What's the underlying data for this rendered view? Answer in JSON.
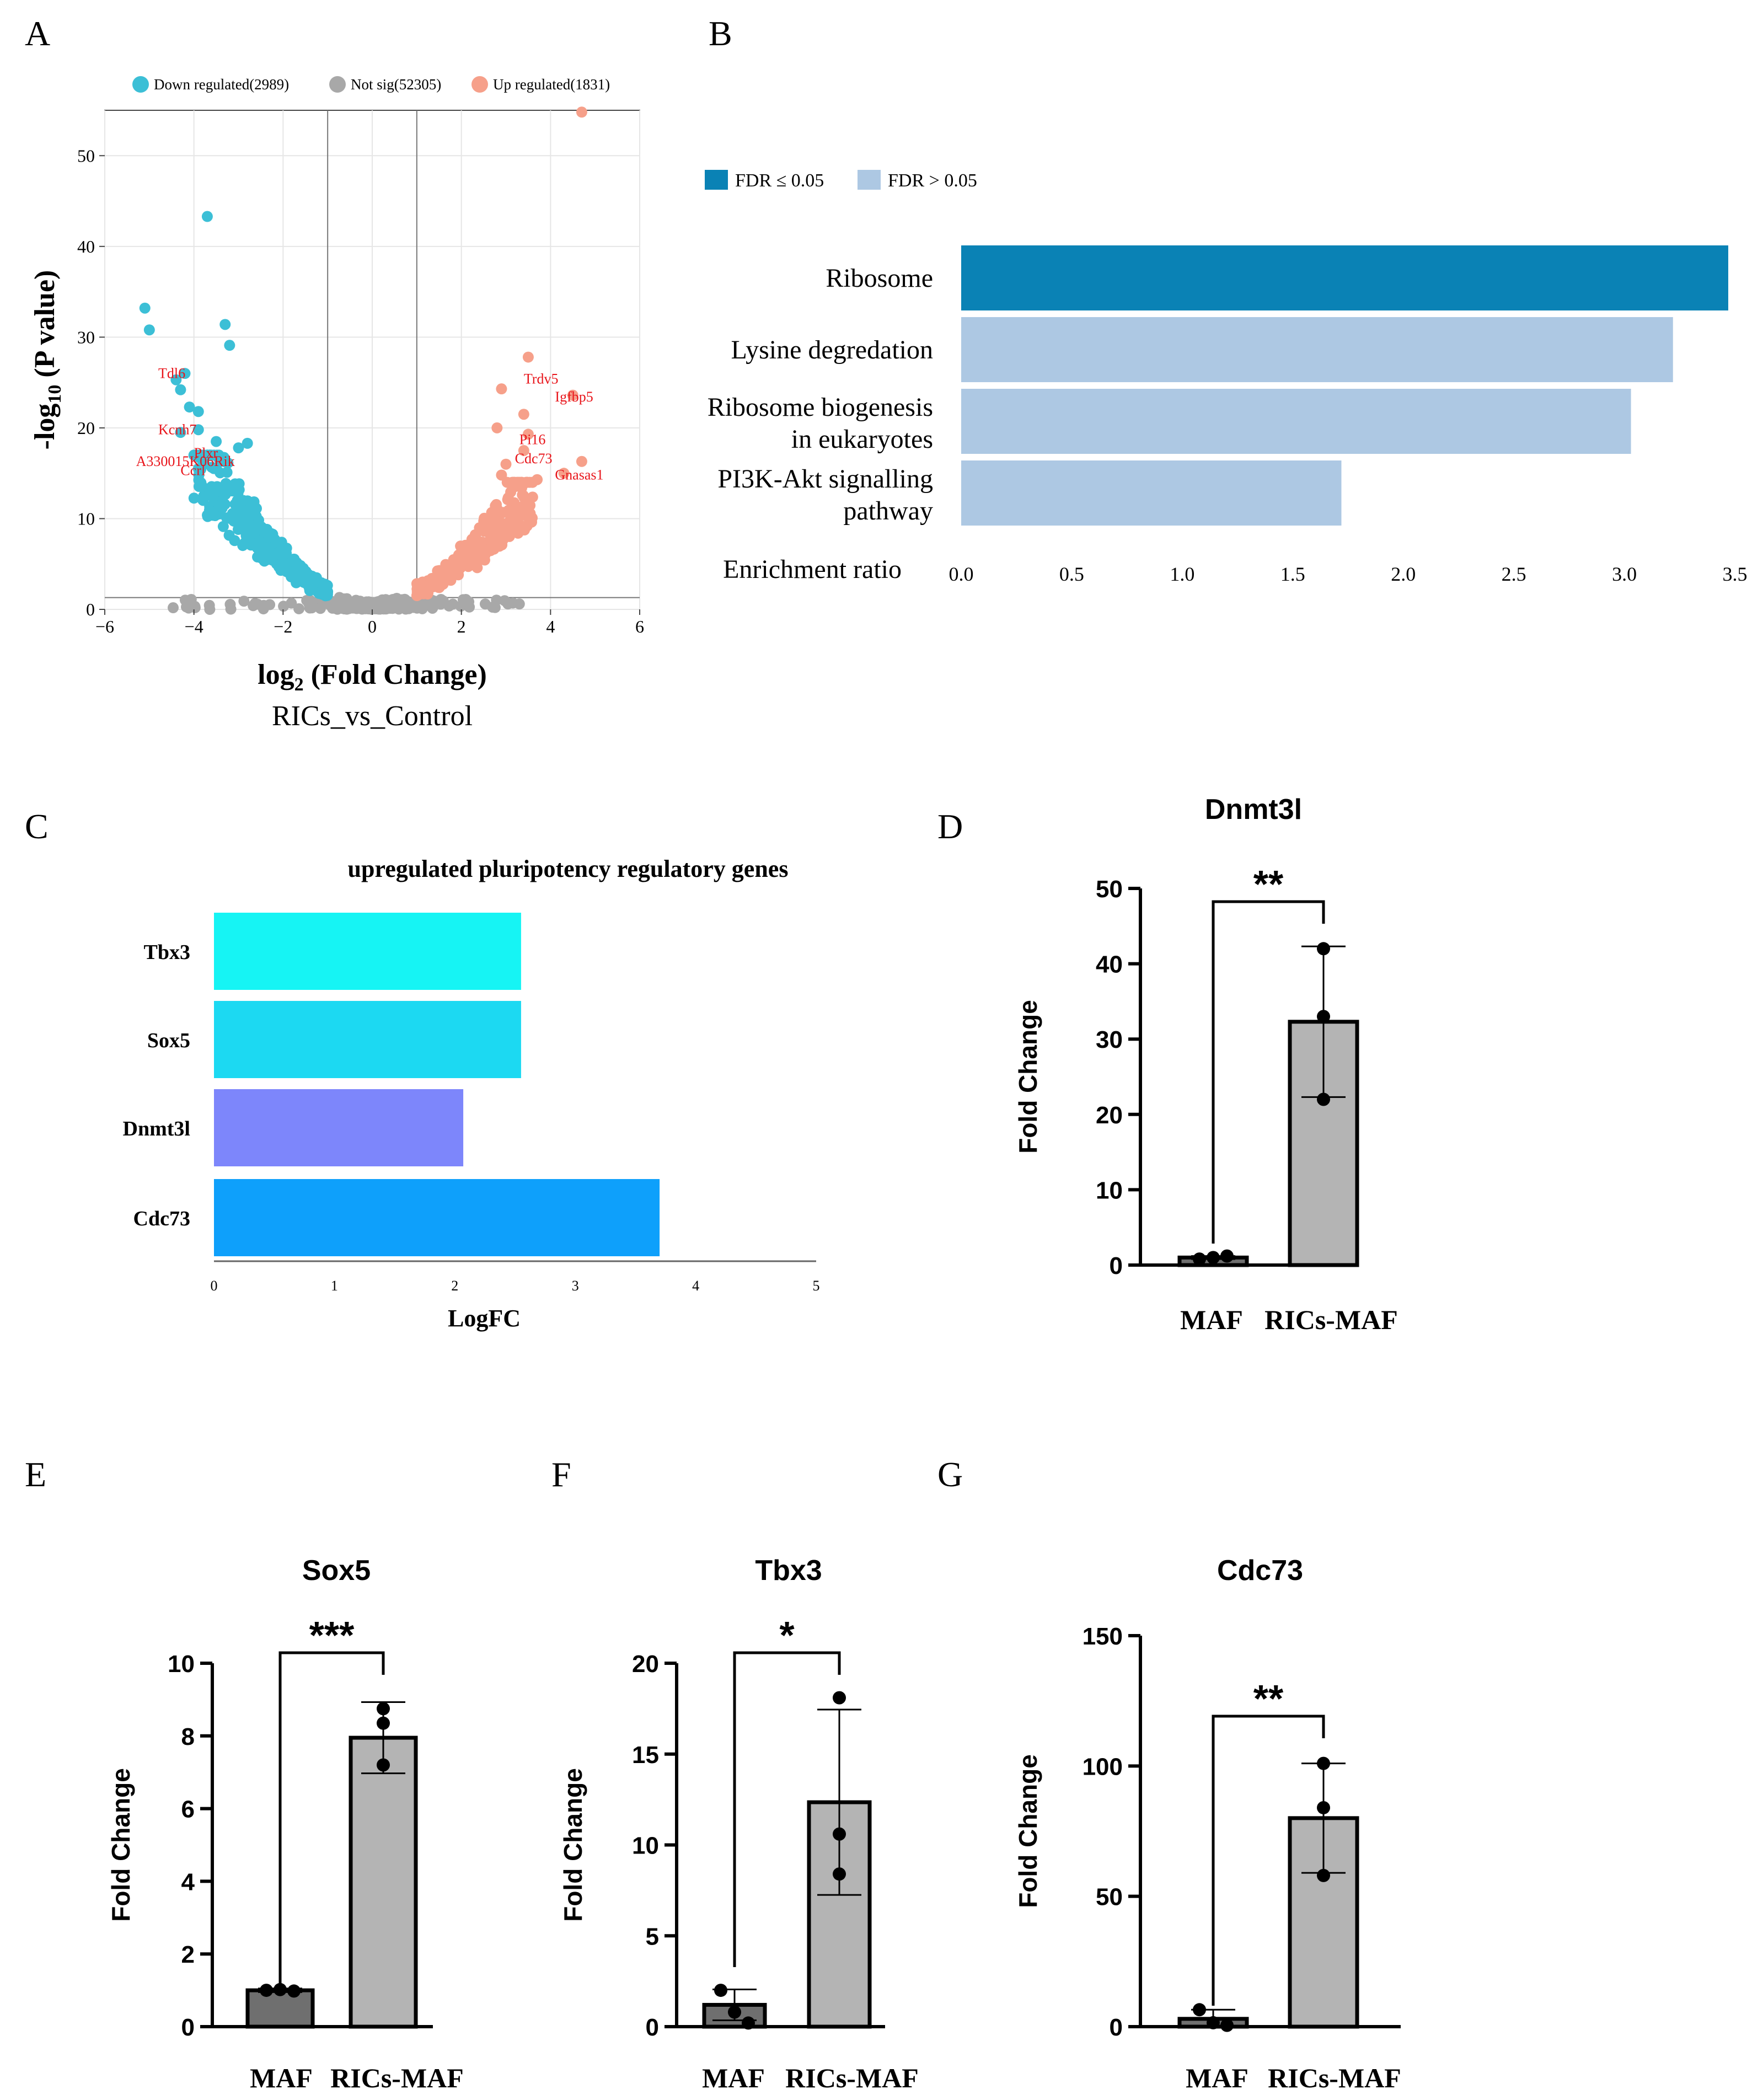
{
  "figure": {
    "panels": {
      "A": "A",
      "B": "B",
      "C": "C",
      "D": "D",
      "E": "E",
      "F": "F",
      "G": "G"
    }
  },
  "colors": {
    "down": "#3cbfd6",
    "notsig": "#a8a8a8",
    "up": "#f6a08a",
    "fdr_sig": "#0a82b5",
    "fdr_nonsig": "#adc8e3",
    "label_red": "#e8141a",
    "tbx3": "#16f4f4",
    "sox5": "#1cd9f2",
    "dnmt3l": "#7d86fb",
    "cdc73": "#0ea0fb",
    "bar_maf": "#6f6f6f",
    "bar_rics": "#b4b4b4"
  },
  "chart_data": [
    {
      "panel": "A",
      "type": "scatter",
      "title": "",
      "xlabel_main": "log",
      "xlabel_sub": "2",
      "xlabel_rest": " (Fold Change)",
      "subtitle": "RICs_vs_Control",
      "ylabel_main": "-log",
      "ylabel_sub": "10",
      "ylabel_rest": " (P value)",
      "xlim": [
        -6,
        6
      ],
      "ylim": [
        0,
        55
      ],
      "xticks": [
        "−6",
        "−4",
        "−2",
        "0",
        "2",
        "4",
        "6"
      ],
      "yticks": [
        "0",
        "10",
        "20",
        "30",
        "40",
        "50"
      ],
      "thresholds": {
        "log2fc": [
          -1,
          1
        ],
        "neglog10p": 1.3
      },
      "legend": [
        {
          "label": "Down regulated(2989)",
          "color_key": "down"
        },
        {
          "label": "Not sig(52305)",
          "color_key": "notsig"
        },
        {
          "label": "Up regulated(1831)",
          "color_key": "up"
        }
      ],
      "highlight_points": {
        "down": [
          [
            -3.7,
            43.3
          ],
          [
            -5.1,
            33.2
          ],
          [
            -5.0,
            30.8
          ],
          [
            -3.3,
            31.4
          ],
          [
            -3.2,
            29.1
          ],
          [
            -4.2,
            26.0
          ],
          [
            -4.4,
            25.3
          ],
          [
            -4.3,
            24.2
          ],
          [
            -4.1,
            22.3
          ],
          [
            -3.9,
            21.8
          ],
          [
            -4.3,
            19.5
          ],
          [
            -3.9,
            19.8
          ],
          [
            -3.5,
            18.5
          ],
          [
            -3.0,
            17.8
          ],
          [
            -2.8,
            18.3
          ],
          [
            -4.0,
            17.0
          ],
          [
            -3.9,
            15.5
          ],
          [
            -3.5,
            15.6
          ]
        ],
        "up": [
          [
            4.7,
            54.8
          ],
          [
            3.5,
            27.8
          ],
          [
            2.9,
            24.3
          ],
          [
            4.5,
            23.6
          ],
          [
            3.4,
            21.5
          ],
          [
            2.8,
            20.0
          ],
          [
            3.5,
            19.3
          ],
          [
            3.4,
            17.5
          ],
          [
            3.0,
            16.0
          ],
          [
            4.7,
            16.3
          ],
          [
            4.3,
            15.0
          ],
          [
            2.9,
            14.8
          ],
          [
            3.7,
            14.3
          ]
        ]
      },
      "gene_labels": [
        {
          "text": "Tdl6",
          "x": -4.8,
          "y": 25.5
        },
        {
          "text": "Kcnh7",
          "x": -4.8,
          "y": 19.3
        },
        {
          "text": "Plxr",
          "x": -4.0,
          "y": 16.7
        },
        {
          "text": "A330015K06Rik",
          "x": -5.3,
          "y": 15.8
        },
        {
          "text": "Ccrl",
          "x": -4.3,
          "y": 14.8
        },
        {
          "text": "Trdv5",
          "x": 3.4,
          "y": 24.9
        },
        {
          "text": "Igfbp5",
          "x": 4.1,
          "y": 22.9
        },
        {
          "text": "Pi16",
          "x": 3.3,
          "y": 18.2
        },
        {
          "text": "Cdc73",
          "x": 3.2,
          "y": 16.1
        },
        {
          "text": "Gnasas1",
          "x": 4.1,
          "y": 14.3
        }
      ],
      "series": [
        {
          "name": "Down regulated",
          "count": 2989
        },
        {
          "name": "Not sig",
          "count": 52305
        },
        {
          "name": "Up regulated",
          "count": 1831
        }
      ]
    },
    {
      "panel": "B",
      "type": "bar",
      "orientation": "horizontal",
      "xlabel": "Enrichment ratio",
      "xlim": [
        0,
        3.5
      ],
      "xticks": [
        "0.0",
        "0.5",
        "1.0",
        "1.5",
        "2.0",
        "2.5",
        "3.0",
        "3.5"
      ],
      "legend": [
        {
          "label": "FDR ≤ 0.05",
          "color_key": "fdr_sig"
        },
        {
          "label": "FDR > 0.05",
          "color_key": "fdr_nonsig"
        }
      ],
      "categories": [
        {
          "lines": [
            "Ribosome"
          ],
          "value": 3.47,
          "color_key": "fdr_sig"
        },
        {
          "lines": [
            "Lysine degredation"
          ],
          "value": 3.22,
          "color_key": "fdr_nonsig"
        },
        {
          "lines": [
            "Ribosome biogenesis",
            "in eukaryotes"
          ],
          "value": 3.03,
          "color_key": "fdr_nonsig"
        },
        {
          "lines": [
            "PI3K-Akt signalling",
            "pathway"
          ],
          "value": 1.72,
          "color_key": "fdr_nonsig"
        }
      ]
    },
    {
      "panel": "C",
      "type": "bar",
      "orientation": "horizontal",
      "title": "upregulated pluripotency regulatory genes",
      "xlabel": "LogFC",
      "xlim": [
        0,
        5
      ],
      "xticks": [
        "0",
        "1",
        "2",
        "3",
        "4",
        "5"
      ],
      "categories": [
        "Tbx3",
        "Sox5",
        "Dnmt3l",
        "Cdc73"
      ],
      "values": [
        2.55,
        2.55,
        2.07,
        3.7
      ],
      "color_keys": [
        "tbx3",
        "sox5",
        "dnmt3l",
        "cdc73"
      ]
    },
    {
      "panel": "D",
      "type": "bar",
      "title": "Dnmt3l",
      "ylabel": "Fold Change",
      "ylim": [
        0,
        50
      ],
      "yticks": [
        "0",
        "10",
        "20",
        "30",
        "40",
        "50"
      ],
      "categories": [
        "MAF",
        "RICs-MAF"
      ],
      "values": [
        1.0,
        32.3
      ],
      "errors": [
        0.2,
        10.0
      ],
      "points": [
        [
          0.8,
          1.0,
          1.2
        ],
        [
          42.0,
          33.0,
          22.0
        ]
      ],
      "significance": "**"
    },
    {
      "panel": "E",
      "type": "bar",
      "title": "Sox5",
      "ylabel": "Fold Change",
      "ylim": [
        0,
        10
      ],
      "yticks": [
        "0",
        "2",
        "4",
        "6",
        "8",
        "10"
      ],
      "categories": [
        "MAF",
        "RICs-MAF"
      ],
      "values": [
        1.0,
        7.95
      ],
      "errors": [
        0.05,
        0.98
      ],
      "points": [
        [
          1.0,
          1.02,
          0.98
        ],
        [
          8.75,
          8.35,
          7.2
        ]
      ],
      "significance": "***"
    },
    {
      "panel": "F",
      "type": "bar",
      "title": "Tbx3",
      "ylabel": "Fold Change",
      "ylim": [
        0,
        20
      ],
      "yticks": [
        "0",
        "5",
        "10",
        "15",
        "20"
      ],
      "categories": [
        "MAF",
        "RICs-MAF"
      ],
      "values": [
        1.2,
        12.35
      ],
      "errors": [
        0.85,
        5.1
      ],
      "points": [
        [
          2.0,
          0.8,
          0.2
        ],
        [
          18.1,
          10.6,
          8.4
        ]
      ],
      "significance": "*"
    },
    {
      "panel": "G",
      "type": "bar",
      "title": "Cdc73",
      "ylabel": "Fold Change",
      "ylim": [
        0,
        150
      ],
      "yticks": [
        "0",
        "50",
        "100",
        "150"
      ],
      "categories": [
        "MAF",
        "RICs-MAF"
      ],
      "values": [
        3.0,
        80.0
      ],
      "errors": [
        3.5,
        21.0
      ],
      "points": [
        [
          6.5,
          1.5,
          0.5
        ],
        [
          101.0,
          84.0,
          58.0
        ]
      ],
      "significance": "**"
    }
  ]
}
